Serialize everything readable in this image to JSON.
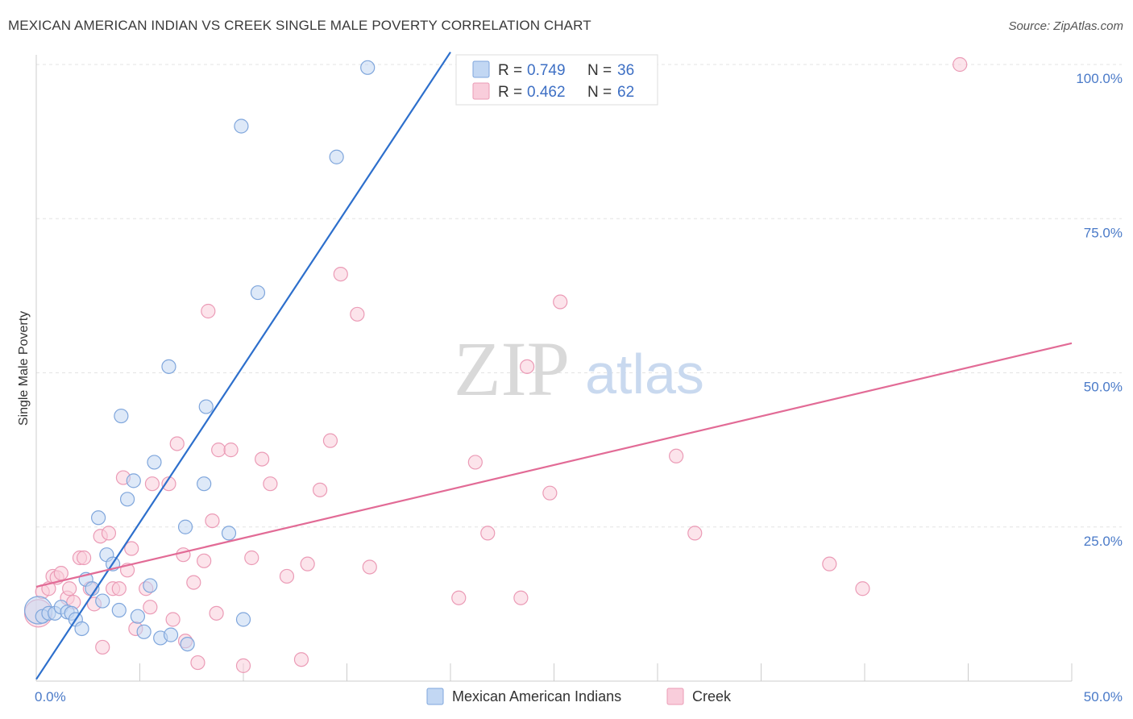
{
  "title": "MEXICAN AMERICAN INDIAN VS CREEK SINGLE MALE POVERTY CORRELATION CHART",
  "source": "Source: ZipAtlas.com",
  "watermark": {
    "zip": "ZIP",
    "atlas": "atlas"
  },
  "colors": {
    "blue_fill": "#c2d7f3",
    "blue_stroke": "#7fa6dc",
    "blue_line": "#2d6fcc",
    "pink_fill": "#f9cddb",
    "pink_stroke": "#eb9bb6",
    "pink_line": "#e26b96",
    "tick_text": "#4a7ac8"
  },
  "legend": {
    "r_label": "R =",
    "n_label": "N =",
    "series": [
      {
        "name": "Mexican American Indians",
        "r": "0.749",
        "n": "36"
      },
      {
        "name": "Creek",
        "r": "0.462",
        "n": "62"
      }
    ]
  },
  "chart_data": {
    "type": "scatter",
    "title": "MEXICAN AMERICAN INDIAN VS CREEK SINGLE MALE POVERTY CORRELATION CHART",
    "xlabel": "",
    "ylabel": "Single Male Poverty",
    "xlim": [
      0,
      50
    ],
    "ylim": [
      0,
      100
    ],
    "x_tick_labels": [
      {
        "value": 0,
        "label": "0.0%"
      },
      {
        "value": 50,
        "label": "50.0%"
      }
    ],
    "y_tick_labels": [
      {
        "value": 25,
        "label": "25.0%"
      },
      {
        "value": 50,
        "label": "50.0%"
      },
      {
        "value": 75,
        "label": "75.0%"
      },
      {
        "value": 100,
        "label": "100.0%"
      }
    ],
    "series": [
      {
        "name": "Mexican American Indians",
        "r": 0.749,
        "n": 36,
        "trendline": {
          "x": [
            0.0,
            20.0
          ],
          "y": [
            0.3,
            102.0
          ]
        },
        "points": [
          {
            "x": 0.1,
            "y": 11.5,
            "big": true
          },
          {
            "x": 0.3,
            "y": 10.5
          },
          {
            "x": 0.6,
            "y": 11.0
          },
          {
            "x": 0.9,
            "y": 11.0
          },
          {
            "x": 1.2,
            "y": 12.0
          },
          {
            "x": 1.5,
            "y": 11.2
          },
          {
            "x": 1.7,
            "y": 11.0
          },
          {
            "x": 1.9,
            "y": 10.0
          },
          {
            "x": 2.2,
            "y": 8.5
          },
          {
            "x": 2.4,
            "y": 16.5
          },
          {
            "x": 2.7,
            "y": 15.0
          },
          {
            "x": 3.0,
            "y": 26.5
          },
          {
            "x": 3.2,
            "y": 13.0
          },
          {
            "x": 3.4,
            "y": 20.5
          },
          {
            "x": 3.7,
            "y": 19.0
          },
          {
            "x": 4.0,
            "y": 11.5
          },
          {
            "x": 4.1,
            "y": 43.0
          },
          {
            "x": 4.4,
            "y": 29.5
          },
          {
            "x": 4.7,
            "y": 32.5
          },
          {
            "x": 4.9,
            "y": 10.5
          },
          {
            "x": 5.2,
            "y": 8.0
          },
          {
            "x": 5.5,
            "y": 15.5
          },
          {
            "x": 5.7,
            "y": 35.5
          },
          {
            "x": 6.0,
            "y": 7.0
          },
          {
            "x": 6.4,
            "y": 51.0
          },
          {
            "x": 6.5,
            "y": 7.5
          },
          {
            "x": 7.2,
            "y": 25.0
          },
          {
            "x": 7.3,
            "y": 6.0
          },
          {
            "x": 8.1,
            "y": 32.0
          },
          {
            "x": 8.2,
            "y": 44.5
          },
          {
            "x": 9.3,
            "y": 24.0
          },
          {
            "x": 9.9,
            "y": 90.0
          },
          {
            "x": 10.0,
            "y": 10.0
          },
          {
            "x": 10.7,
            "y": 63.0
          },
          {
            "x": 14.5,
            "y": 85.0
          },
          {
            "x": 16.0,
            "y": 99.5
          }
        ]
      },
      {
        "name": "Creek",
        "r": 0.462,
        "n": 62,
        "trendline": {
          "x": [
            0.0,
            50.0
          ],
          "y": [
            15.3,
            54.8
          ]
        },
        "points": [
          {
            "x": 0.1,
            "y": 11.0,
            "big": true
          },
          {
            "x": 0.3,
            "y": 14.5
          },
          {
            "x": 0.6,
            "y": 15.0
          },
          {
            "x": 0.8,
            "y": 17.0
          },
          {
            "x": 1.0,
            "y": 16.8
          },
          {
            "x": 1.2,
            "y": 17.5
          },
          {
            "x": 1.5,
            "y": 13.5
          },
          {
            "x": 1.6,
            "y": 15.0
          },
          {
            "x": 1.8,
            "y": 12.8
          },
          {
            "x": 2.1,
            "y": 20.0
          },
          {
            "x": 2.3,
            "y": 20.0
          },
          {
            "x": 2.6,
            "y": 15.0
          },
          {
            "x": 2.8,
            "y": 12.5
          },
          {
            "x": 3.1,
            "y": 23.5
          },
          {
            "x": 3.2,
            "y": 5.5
          },
          {
            "x": 3.5,
            "y": 24.0
          },
          {
            "x": 3.7,
            "y": 15.0
          },
          {
            "x": 4.0,
            "y": 15.0
          },
          {
            "x": 4.2,
            "y": 33.0
          },
          {
            "x": 4.4,
            "y": 18.0
          },
          {
            "x": 4.6,
            "y": 21.5
          },
          {
            "x": 4.8,
            "y": 8.5
          },
          {
            "x": 5.3,
            "y": 15.0
          },
          {
            "x": 5.5,
            "y": 12.0
          },
          {
            "x": 5.6,
            "y": 32.0
          },
          {
            "x": 6.4,
            "y": 32.0
          },
          {
            "x": 6.6,
            "y": 10.0
          },
          {
            "x": 6.8,
            "y": 38.5
          },
          {
            "x": 7.1,
            "y": 20.5
          },
          {
            "x": 7.2,
            "y": 6.5
          },
          {
            "x": 7.6,
            "y": 16.0
          },
          {
            "x": 7.8,
            "y": 3.0
          },
          {
            "x": 8.1,
            "y": 19.5
          },
          {
            "x": 8.3,
            "y": 60.0
          },
          {
            "x": 8.5,
            "y": 26.0
          },
          {
            "x": 8.7,
            "y": 11.0
          },
          {
            "x": 8.8,
            "y": 37.5
          },
          {
            "x": 9.4,
            "y": 37.5
          },
          {
            "x": 10.0,
            "y": 2.5
          },
          {
            "x": 10.4,
            "y": 20.0
          },
          {
            "x": 10.9,
            "y": 36.0
          },
          {
            "x": 11.3,
            "y": 32.0
          },
          {
            "x": 12.1,
            "y": 17.0
          },
          {
            "x": 12.8,
            "y": 3.5
          },
          {
            "x": 13.1,
            "y": 19.0
          },
          {
            "x": 13.7,
            "y": 31.0
          },
          {
            "x": 14.2,
            "y": 39.0
          },
          {
            "x": 14.7,
            "y": 66.0
          },
          {
            "x": 15.5,
            "y": 59.5
          },
          {
            "x": 16.1,
            "y": 18.5
          },
          {
            "x": 20.4,
            "y": 13.5
          },
          {
            "x": 21.2,
            "y": 35.5
          },
          {
            "x": 21.8,
            "y": 24.0
          },
          {
            "x": 23.4,
            "y": 13.5
          },
          {
            "x": 23.7,
            "y": 51.0
          },
          {
            "x": 24.8,
            "y": 30.5
          },
          {
            "x": 25.3,
            "y": 61.5
          },
          {
            "x": 30.9,
            "y": 36.5
          },
          {
            "x": 31.8,
            "y": 24.0
          },
          {
            "x": 38.3,
            "y": 19.0
          },
          {
            "x": 39.9,
            "y": 15.0
          },
          {
            "x": 44.6,
            "y": 100.0
          }
        ]
      }
    ]
  }
}
